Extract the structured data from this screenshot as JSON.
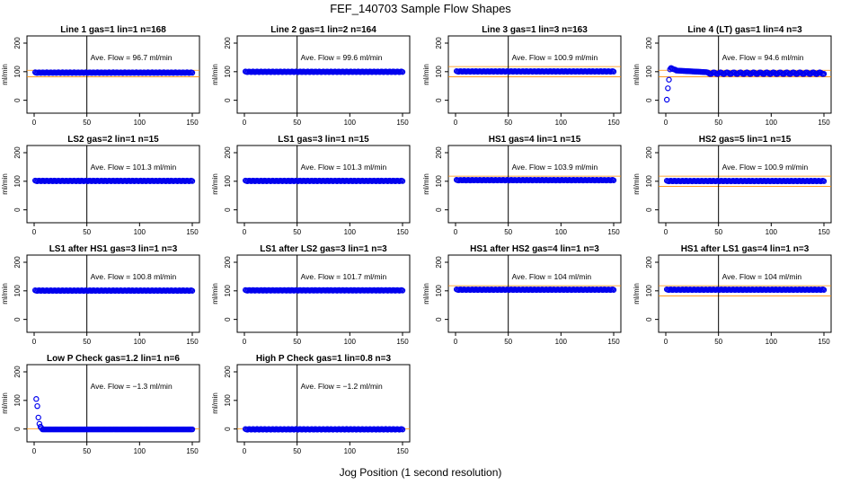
{
  "figure": {
    "title": "FEF_140703  Sample Flow Shapes",
    "xlabel": "Jog Position (1 second resolution)",
    "colors": {
      "points": "#0000ee",
      "axes": "#000000",
      "hline": "#ff8c00"
    }
  },
  "chart_data": [
    {
      "type": "scatter",
      "title": "Line 1 gas=1 lin=1 n=168",
      "ylabel": "ml/min",
      "annotation": "Ave. Flow =  96.7  ml/min",
      "xlim": [
        0,
        150
      ],
      "ylim": [
        -20,
        200
      ],
      "yticks": [
        0,
        100,
        200
      ],
      "xticks": [
        0,
        50,
        100,
        150
      ],
      "vline": 50,
      "hlines": [
        82,
        105
      ],
      "mean": 96.7,
      "shape": "flat",
      "x_end": 150
    },
    {
      "type": "scatter",
      "title": "Line 2 gas=1 lin=2 n=164",
      "ylabel": "ml/min",
      "annotation": "Ave. Flow =  99.6  ml/min",
      "xlim": [
        0,
        150
      ],
      "ylim": [
        -20,
        200
      ],
      "yticks": [
        0,
        100,
        200
      ],
      "xticks": [
        0,
        50,
        100,
        150
      ],
      "vline": 50,
      "hlines": [],
      "mean": 99.6,
      "shape": "flat",
      "x_end": 150
    },
    {
      "type": "scatter",
      "title": "Line 3 gas=1 lin=3 n=163",
      "ylabel": "ml/min",
      "annotation": "Ave. Flow =  100.9  ml/min",
      "xlim": [
        0,
        150
      ],
      "ylim": [
        -20,
        200
      ],
      "yticks": [
        0,
        100,
        200
      ],
      "xticks": [
        0,
        50,
        100,
        150
      ],
      "vline": 50,
      "hlines": [
        82,
        118
      ],
      "mean": 100.9,
      "shape": "flat",
      "x_end": 150
    },
    {
      "type": "scatter",
      "title": "Line 4 (LT) gas=1 lin=4 n=3",
      "ylabel": "ml/min",
      "annotation": "Ave. Flow =  94.6  ml/min",
      "xlim": [
        0,
        150
      ],
      "ylim": [
        -20,
        200
      ],
      "yticks": [
        0,
        100,
        200
      ],
      "xticks": [
        0,
        50,
        100,
        150
      ],
      "vline": 50,
      "hlines": [
        82,
        105
      ],
      "mean": 94.6,
      "shape": "spike",
      "x_end": 150
    },
    {
      "type": "scatter",
      "title": "LS2 gas=2 lin=1 n=15",
      "ylabel": "ml/min",
      "annotation": "Ave. Flow =  101.3  ml/min",
      "xlim": [
        0,
        150
      ],
      "ylim": [
        -20,
        200
      ],
      "yticks": [
        0,
        100,
        200
      ],
      "xticks": [
        0,
        50,
        100,
        150
      ],
      "vline": 50,
      "hlines": [],
      "mean": 101.3,
      "shape": "flat",
      "x_end": 150
    },
    {
      "type": "scatter",
      "title": "LS1 gas=3 lin=1 n=15",
      "ylabel": "ml/min",
      "annotation": "Ave. Flow =  101.3  ml/min",
      "xlim": [
        0,
        150
      ],
      "ylim": [
        -20,
        200
      ],
      "yticks": [
        0,
        100,
        200
      ],
      "xticks": [
        0,
        50,
        100,
        150
      ],
      "vline": 50,
      "hlines": [],
      "mean": 101.3,
      "shape": "flat",
      "x_end": 150
    },
    {
      "type": "scatter",
      "title": "HS1 gas=4 lin=1 n=15",
      "ylabel": "ml/min",
      "annotation": "Ave. Flow =  103.9  ml/min",
      "xlim": [
        0,
        150
      ],
      "ylim": [
        -20,
        200
      ],
      "yticks": [
        0,
        100,
        200
      ],
      "xticks": [
        0,
        50,
        100,
        150
      ],
      "vline": 50,
      "hlines": [
        118
      ],
      "mean": 103.9,
      "shape": "flat",
      "x_end": 150
    },
    {
      "type": "scatter",
      "title": "HS2 gas=5 lin=1 n=15",
      "ylabel": "ml/min",
      "annotation": "Ave. Flow =  100.9  ml/min",
      "xlim": [
        0,
        150
      ],
      "ylim": [
        -20,
        200
      ],
      "yticks": [
        0,
        100,
        200
      ],
      "xticks": [
        0,
        50,
        100,
        150
      ],
      "vline": 50,
      "hlines": [
        82,
        118
      ],
      "mean": 100.9,
      "shape": "flat",
      "x_end": 150
    },
    {
      "type": "scatter",
      "title": "LS1 after HS1 gas=3 lin=1 n=3",
      "ylabel": "ml/min",
      "annotation": "Ave. Flow =  100.8  ml/min",
      "xlim": [
        0,
        150
      ],
      "ylim": [
        -20,
        200
      ],
      "yticks": [
        0,
        100,
        200
      ],
      "xticks": [
        0,
        50,
        100,
        150
      ],
      "vline": 50,
      "hlines": [],
      "mean": 100.8,
      "shape": "flat",
      "x_end": 150
    },
    {
      "type": "scatter",
      "title": "LS1 after LS2 gas=3 lin=1 n=3",
      "ylabel": "ml/min",
      "annotation": "Ave. Flow =  101.7  ml/min",
      "xlim": [
        0,
        150
      ],
      "ylim": [
        -20,
        200
      ],
      "yticks": [
        0,
        100,
        200
      ],
      "xticks": [
        0,
        50,
        100,
        150
      ],
      "vline": 50,
      "hlines": [],
      "mean": 101.7,
      "shape": "flat",
      "x_end": 150
    },
    {
      "type": "scatter",
      "title": "HS1 after HS2 gas=4 lin=1 n=3",
      "ylabel": "ml/min",
      "annotation": "Ave. Flow =  104  ml/min",
      "xlim": [
        0,
        150
      ],
      "ylim": [
        -20,
        200
      ],
      "yticks": [
        0,
        100,
        200
      ],
      "xticks": [
        0,
        50,
        100,
        150
      ],
      "vline": 50,
      "hlines": [
        118
      ],
      "mean": 104,
      "shape": "flat",
      "x_end": 150
    },
    {
      "type": "scatter",
      "title": "HS1 after LS1 gas=4 lin=1 n=3",
      "ylabel": "ml/min",
      "annotation": "Ave. Flow =  104  ml/min",
      "xlim": [
        0,
        150
      ],
      "ylim": [
        -20,
        200
      ],
      "yticks": [
        0,
        100,
        200
      ],
      "xticks": [
        0,
        50,
        100,
        150
      ],
      "vline": 50,
      "hlines": [
        82,
        118
      ],
      "mean": 104,
      "shape": "flat",
      "x_end": 150
    },
    {
      "type": "scatter",
      "title": "Low P Check gas=1.2 lin=1 n=6",
      "ylabel": "ml/min",
      "annotation": "Ave. Flow =  −1.3  ml/min",
      "xlim": [
        0,
        150
      ],
      "ylim": [
        -20,
        200
      ],
      "yticks": [
        0,
        100,
        200
      ],
      "xticks": [
        0,
        50,
        100,
        150
      ],
      "vline": 50,
      "hlines": [
        0
      ],
      "mean": -1.3,
      "shape": "decay",
      "x_end": 150
    },
    {
      "type": "scatter",
      "title": "High P Check gas=1 lin=0.8 n=3",
      "ylabel": "ml/min",
      "annotation": "Ave. Flow =  −1.2  ml/min",
      "xlim": [
        0,
        150
      ],
      "ylim": [
        -20,
        200
      ],
      "yticks": [
        0,
        100,
        200
      ],
      "xticks": [
        0,
        50,
        100,
        150
      ],
      "vline": 50,
      "hlines": [
        0
      ],
      "mean": -1.2,
      "shape": "flat",
      "x_end": 150
    }
  ]
}
